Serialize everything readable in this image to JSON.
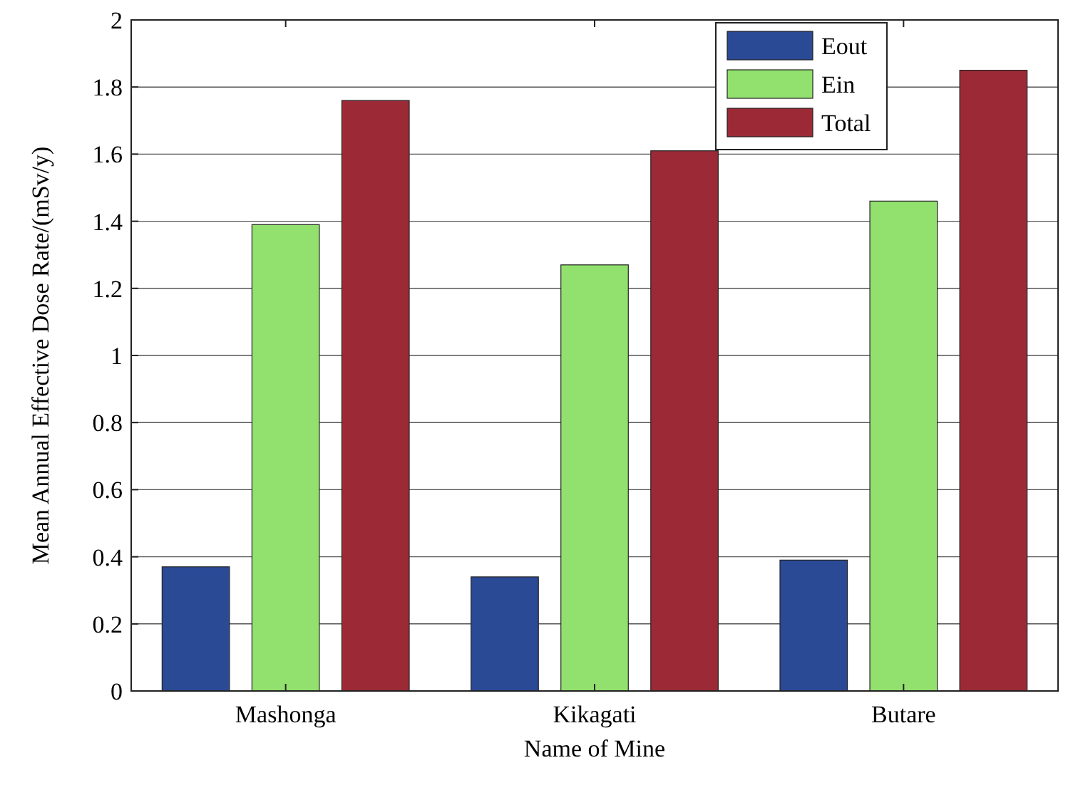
{
  "chart_data": {
    "type": "bar",
    "xlabel": "Name of Mine",
    "ylabel": "Mean Annual Effective Dose Rate/(mSv/y)",
    "categories": [
      "Mashonga",
      "Kikagati",
      "Butare"
    ],
    "series": [
      {
        "name": "Eout",
        "color": "#2b4a96",
        "values": [
          0.37,
          0.34,
          0.39
        ]
      },
      {
        "name": "Ein",
        "color": "#92e06e",
        "values": [
          1.39,
          1.27,
          1.46
        ]
      },
      {
        "name": "Total",
        "color": "#9c2a36",
        "values": [
          1.76,
          1.61,
          1.85
        ]
      }
    ],
    "ylim": [
      0,
      2
    ],
    "yticks": [
      0,
      0.2,
      0.4,
      0.6,
      0.8,
      1,
      1.2,
      1.4,
      1.6,
      1.8,
      2
    ],
    "grid": "y",
    "legend": "top right"
  }
}
